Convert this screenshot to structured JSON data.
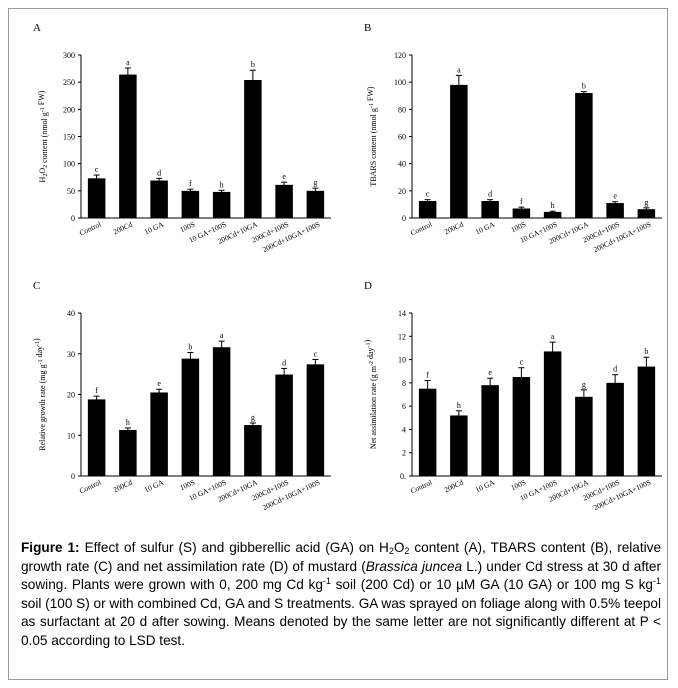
{
  "chart_data": [
    {
      "panel_letter": "A",
      "type": "bar",
      "ylabel": "H2O2 content (nmol g-1 FW)",
      "ylim": [
        0,
        300
      ],
      "yticks": [
        0,
        50,
        100,
        150,
        200,
        250,
        300
      ],
      "categories": [
        "Control",
        "200Cd",
        "10 GA",
        "100S",
        "10 GA+100S",
        "200Cd+10GA",
        "200Cd+100S",
        "200Cd+10GA+100S"
      ],
      "values": [
        73,
        264,
        69,
        50,
        48,
        254,
        61,
        50
      ],
      "errors": [
        6,
        12,
        4,
        3,
        3,
        18,
        5,
        5
      ],
      "letters": [
        "c",
        "a",
        "d",
        "f",
        "h",
        "b",
        "e",
        "g"
      ],
      "grid": false
    },
    {
      "panel_letter": "B",
      "type": "bar",
      "ylabel": "TBARS content (nmol g-1 FW)",
      "ylim": [
        0,
        120
      ],
      "yticks": [
        0,
        20,
        40,
        60,
        80,
        100,
        120
      ],
      "categories": [
        "Control",
        "200Cd",
        "10 GA",
        "100S",
        "10 GA+100S",
        "200Cd+10GA",
        "200Cd+100S",
        "200Cd+10GA+100S"
      ],
      "values": [
        12.5,
        98,
        12.5,
        7,
        4.5,
        92,
        11,
        6.5
      ],
      "errors": [
        1,
        7,
        1,
        1,
        0.5,
        1,
        1,
        1
      ],
      "letters": [
        "c",
        "a",
        "d",
        "f",
        "h",
        "b",
        "e",
        "g"
      ],
      "grid": false
    },
    {
      "panel_letter": "C",
      "type": "bar",
      "ylabel": "Relative growth rate (mg g-1 day-1)",
      "ylim": [
        0,
        40
      ],
      "yticks": [
        0,
        10,
        20,
        30,
        40
      ],
      "categories": [
        "Control",
        "200Cd",
        "10 GA",
        "100S",
        "10 GA+100S",
        "200Cd+10GA",
        "200Cd+100S",
        "200Cd+10GA+100S"
      ],
      "values": [
        18.8,
        11.3,
        20.5,
        28.8,
        31.6,
        12.5,
        24.9,
        27.4
      ],
      "errors": [
        0.8,
        0.5,
        0.8,
        1.5,
        1.5,
        0.5,
        1.5,
        1.2
      ],
      "letters": [
        "f",
        "h",
        "e",
        "b",
        "a",
        "g",
        "d",
        "c"
      ],
      "grid": false
    },
    {
      "panel_letter": "D",
      "type": "bar",
      "ylabel": "Net assimilation rate (g m-2 day-1)",
      "ylim": [
        0,
        14
      ],
      "yticks": [
        0,
        2,
        4,
        6,
        8,
        10,
        12,
        14
      ],
      "ytick_labels": [
        "0.",
        "2",
        "4",
        "6",
        "8",
        "10",
        "12",
        "14"
      ],
      "categories": [
        "Control",
        "200Cd",
        "10 GA",
        "100S",
        "10 GA+100S",
        "200Cd+10GA",
        "200Cd+100S",
        "200Cd+10GA+100S"
      ],
      "values": [
        7.5,
        5.2,
        7.8,
        8.5,
        10.7,
        6.8,
        8.0,
        9.4
      ],
      "errors": [
        0.7,
        0.4,
        0.6,
        0.8,
        0.8,
        0.6,
        0.7,
        0.8
      ],
      "letters": [
        "f",
        "h",
        "e",
        "c",
        "a",
        "g",
        "d",
        "b"
      ],
      "grid": false
    }
  ],
  "caption": {
    "label": "Figure 1:",
    "html": "Effect of sulfur (S) and gibberellic acid (GA) on H<sub>2</sub>O<sub>2</sub> content (A), TBARS content (B), relative growth rate (C) and net assimilation rate (D) of mustard (<i>Brassica juncea</i> L.) under Cd stress at 30 d after sowing. Plants were grown with 0, 200 mg Cd kg<sup>-1</sup> soil (200 Cd) or 10 µM GA (10 GA) or 100 mg S kg<sup>-1</sup> soil (100 S) or with combined Cd, GA and S treatments. GA was sprayed on foliage along with 0.5% teepol as surfactant at 20 d after sowing. Means denoted by the same letter are not significantly different at P &lt; 0.05 according to LSD test."
  },
  "colors": {
    "bar": "#000000",
    "axis": "#000000",
    "border": "#9a9a9a"
  }
}
